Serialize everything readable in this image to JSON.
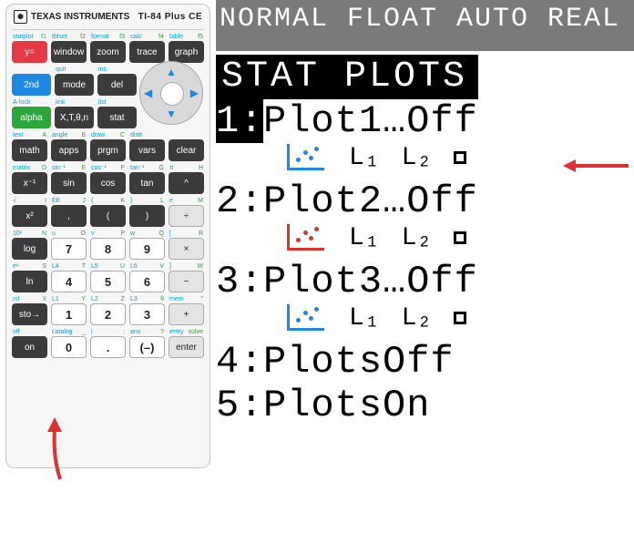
{
  "calculator": {
    "brand_text": "TEXAS INSTRUMENTS",
    "model": "TI-84 Plus CE",
    "rows": [
      [
        {
          "top2": "statplot",
          "topA": "f1",
          "label": "y=",
          "cls": "red"
        },
        {
          "top2": "tblset",
          "topA": "f2",
          "label": "window",
          "cls": "dark"
        },
        {
          "top2": "format",
          "topA": "f3",
          "label": "zoom",
          "cls": "dark"
        },
        {
          "top2": "calc",
          "topA": "f4",
          "label": "trace",
          "cls": "dark"
        },
        {
          "top2": "table",
          "topA": "f5",
          "label": "graph",
          "cls": "dark"
        }
      ],
      [
        {
          "top2": "",
          "topA": "",
          "label": "2nd",
          "cls": "blue"
        },
        {
          "top2": "quit",
          "topA": "",
          "label": "mode",
          "cls": "dark"
        },
        {
          "top2": "ins",
          "topA": "",
          "label": "del",
          "cls": "dark"
        }
      ],
      [
        {
          "top2": "A-lock",
          "topA": "",
          "label": "alpha",
          "cls": "green"
        },
        {
          "top2": "link",
          "topA": "",
          "label": "X,T,θ,n",
          "cls": "dark"
        },
        {
          "top2": "list",
          "topA": "",
          "label": "stat",
          "cls": "dark"
        }
      ],
      [
        {
          "top2": "test",
          "topA": "A",
          "label": "math",
          "cls": "dark"
        },
        {
          "top2": "angle",
          "topA": "B",
          "label": "apps",
          "cls": "dark"
        },
        {
          "top2": "draw",
          "topA": "C",
          "label": "prgm",
          "cls": "dark"
        },
        {
          "top2": "distr",
          "topA": "",
          "label": "vars",
          "cls": "dark"
        },
        {
          "top2": "",
          "topA": "",
          "label": "clear",
          "cls": "dark"
        }
      ],
      [
        {
          "top2": "matrix",
          "topA": "D",
          "label": "x⁻¹",
          "cls": "dark"
        },
        {
          "top2": "sin⁻¹",
          "topA": "E",
          "label": "sin",
          "cls": "dark"
        },
        {
          "top2": "cos⁻¹",
          "topA": "F",
          "label": "cos",
          "cls": "dark"
        },
        {
          "top2": "tan⁻¹",
          "topA": "G",
          "label": "tan",
          "cls": "dark"
        },
        {
          "top2": "π",
          "topA": "H",
          "label": "^",
          "cls": "dark"
        }
      ],
      [
        {
          "top2": "√",
          "topA": "I",
          "label": "x²",
          "cls": "dark"
        },
        {
          "top2": "EE",
          "topA": "J",
          "label": ",",
          "cls": "dark"
        },
        {
          "top2": "{",
          "topA": "K",
          "label": "(",
          "cls": "dark"
        },
        {
          "top2": "}",
          "topA": "L",
          "label": ")",
          "cls": "dark"
        },
        {
          "top2": "e",
          "topA": "M",
          "label": "÷",
          "cls": "op"
        }
      ],
      [
        {
          "top2": "10ˣ",
          "topA": "N",
          "label": "log",
          "cls": "dark"
        },
        {
          "top2": "u",
          "topA": "O",
          "label": "7",
          "cls": "num"
        },
        {
          "top2": "v",
          "topA": "P",
          "label": "8",
          "cls": "num"
        },
        {
          "top2": "w",
          "topA": "Q",
          "label": "9",
          "cls": "num"
        },
        {
          "top2": "[",
          "topA": "R",
          "label": "×",
          "cls": "op"
        }
      ],
      [
        {
          "top2": "eˣ",
          "topA": "S",
          "label": "ln",
          "cls": "dark"
        },
        {
          "top2": "L4",
          "topA": "T",
          "label": "4",
          "cls": "num"
        },
        {
          "top2": "L5",
          "topA": "U",
          "label": "5",
          "cls": "num"
        },
        {
          "top2": "L6",
          "topA": "V",
          "label": "6",
          "cls": "num"
        },
        {
          "top2": "]",
          "topA": "W",
          "label": "−",
          "cls": "op"
        }
      ],
      [
        {
          "top2": "rcl",
          "topA": "X",
          "label": "sto→",
          "cls": "dark"
        },
        {
          "top2": "L1",
          "topA": "Y",
          "label": "1",
          "cls": "num"
        },
        {
          "top2": "L2",
          "topA": "Z",
          "label": "2",
          "cls": "num"
        },
        {
          "top2": "L3",
          "topA": "θ",
          "label": "3",
          "cls": "num"
        },
        {
          "top2": "mem",
          "topA": "\"",
          "label": "+",
          "cls": "op"
        }
      ],
      [
        {
          "top2": "off",
          "topA": "",
          "label": "on",
          "cls": "dark"
        },
        {
          "top2": "catalog",
          "topA": "_",
          "label": "0",
          "cls": "num"
        },
        {
          "top2": "i",
          "topA": ":",
          "label": ".",
          "cls": "num"
        },
        {
          "top2": "ans",
          "topA": "?",
          "label": "(–)",
          "cls": "num"
        },
        {
          "top2": "entry",
          "topA": "solve",
          "label": "enter",
          "cls": "op"
        }
      ]
    ]
  },
  "screen": {
    "statusbar": "NORMAL FLOAT AUTO REAL",
    "title": "STAT PLOTS",
    "plots": [
      {
        "idx": "1:",
        "label": "Plot1…Off",
        "selected": true,
        "icon_color": "#1e88e5",
        "l1": "L₁",
        "l2": "L₂",
        "marker": true
      },
      {
        "idx": "2:",
        "label": "Plot2…Off",
        "selected": false,
        "icon_color": "#e03030",
        "l1": "L₁",
        "l2": "L₂",
        "marker": true
      },
      {
        "idx": "3:",
        "label": "Plot3…Off",
        "selected": false,
        "icon_color": "#1e88e5",
        "l1": "L₁",
        "l2": "L₂",
        "marker": true
      }
    ],
    "extra": [
      {
        "idx": "4:",
        "label": "PlotsOff"
      },
      {
        "idx": "5:",
        "label": "PlotsOn"
      }
    ]
  },
  "annotations": {
    "arrow_color": "#e03030"
  }
}
